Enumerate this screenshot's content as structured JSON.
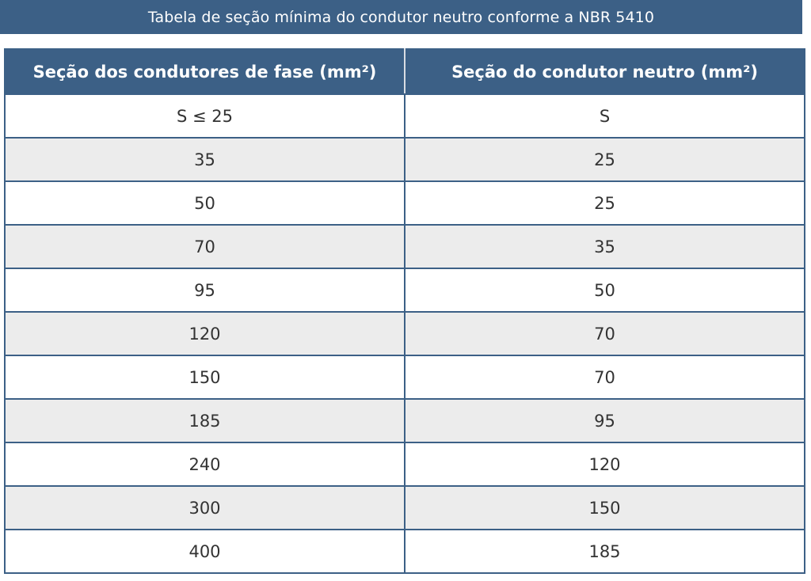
{
  "title": "Tabela de seção mínima do condutor neutro conforme a NBR 5410",
  "table": {
    "headers": [
      "Seção dos condutores de fase (mm²)",
      "Seção do condutor neutro (mm²)"
    ],
    "rows": [
      [
        "S ≤ 25",
        "S"
      ],
      [
        "35",
        "25"
      ],
      [
        "50",
        "25"
      ],
      [
        "70",
        "35"
      ],
      [
        "95",
        "50"
      ],
      [
        "120",
        "70"
      ],
      [
        "150",
        "70"
      ],
      [
        "185",
        "95"
      ],
      [
        "240",
        "120"
      ],
      [
        "300",
        "150"
      ],
      [
        "400",
        "185"
      ]
    ]
  },
  "colors": {
    "header_bg": "#3c6086",
    "header_text": "#ffffff",
    "row_alt_bg": "#ececec",
    "border": "#3c6086"
  }
}
